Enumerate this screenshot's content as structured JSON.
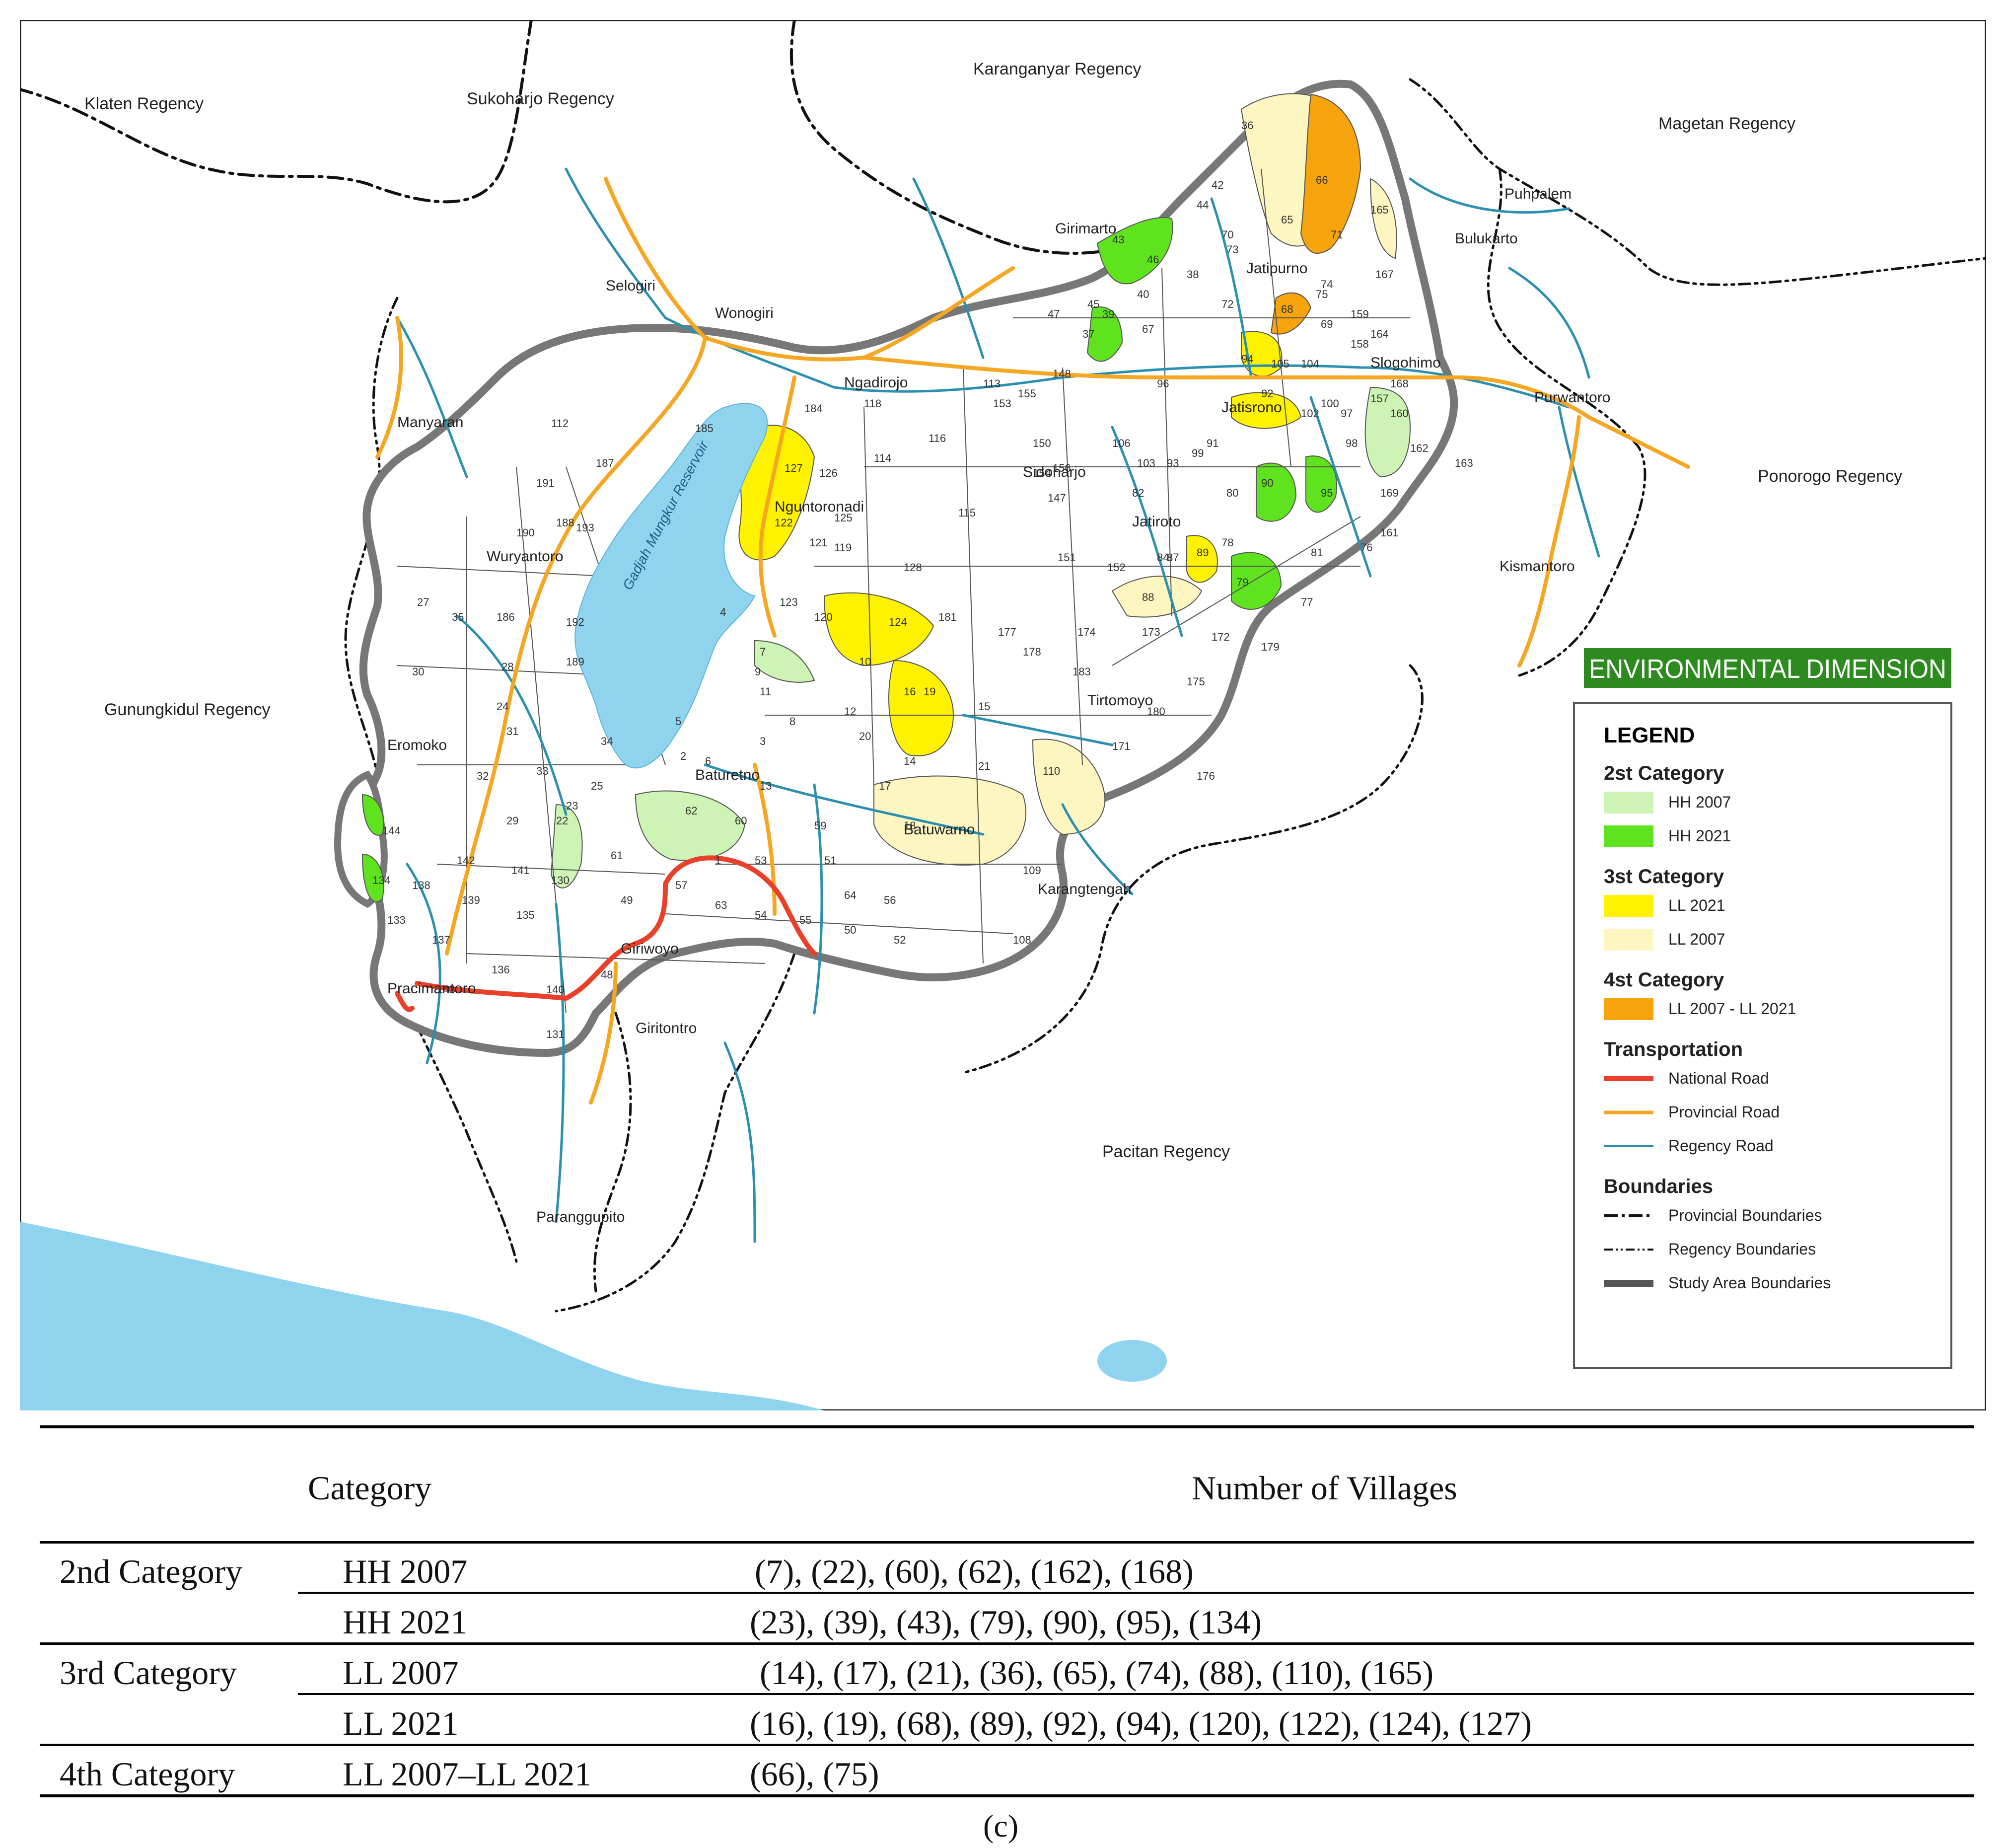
{
  "map": {
    "regions": [
      {
        "id": "klaten",
        "label": "Klaten Regency"
      },
      {
        "id": "sukoharjo",
        "label": "Sukoharjo Regency"
      },
      {
        "id": "karanganyar",
        "label": "Karanganyar Regency"
      },
      {
        "id": "magetan",
        "label": "Magetan Regency"
      },
      {
        "id": "ponorogo",
        "label": "Ponorogo Regency"
      },
      {
        "id": "gunungkidul",
        "label": "Gunungkidul Regency"
      },
      {
        "id": "pacitan",
        "label": "Pacitan Regency"
      }
    ],
    "reservoir_label": "Gadjah Mungkur Reservoir",
    "places": [
      "Selogiri",
      "Wonogiri",
      "Girimarto",
      "Jatipurno",
      "Puhpalem",
      "Bulukarto",
      "Slogohimo",
      "Purwantoro",
      "Manyaran",
      "Ngadirojo",
      "Nguntoronadi",
      "Jatisrono",
      "Sidoharjo",
      "Jatiroto",
      "Kismantoro",
      "Wuryantoro",
      "Tirtomoyo",
      "Eromoko",
      "Baturetno",
      "Batuwarno",
      "Karangtengah",
      "Giriwoyo",
      "Pracimantoro",
      "Giritontro",
      "Paranggupito"
    ],
    "village_numbers": [
      "36",
      "66",
      "42",
      "44",
      "165",
      "70",
      "65",
      "71",
      "73",
      "167",
      "43",
      "46",
      "38",
      "75",
      "74",
      "39",
      "47",
      "45",
      "37",
      "40",
      "67",
      "72",
      "68",
      "69",
      "159",
      "164",
      "158",
      "94",
      "105",
      "104",
      "168",
      "160",
      "184",
      "118",
      "148",
      "113",
      "153",
      "155",
      "96",
      "92",
      "100",
      "102",
      "97",
      "157",
      "112",
      "185",
      "187",
      "114",
      "116",
      "150",
      "154",
      "156",
      "106",
      "103",
      "93",
      "91",
      "98",
      "162",
      "163",
      "127",
      "126",
      "191",
      "188",
      "193",
      "190",
      "122",
      "125",
      "115",
      "147",
      "82",
      "99",
      "80",
      "90",
      "95",
      "169",
      "161",
      "121",
      "119",
      "128",
      "151",
      "152",
      "84",
      "87",
      "89",
      "78",
      "81",
      "76",
      "120",
      "124",
      "181",
      "177",
      "174",
      "173",
      "172",
      "179",
      "27",
      "35",
      "186",
      "192",
      "189",
      "4",
      "123",
      "88",
      "79",
      "77",
      "30",
      "28",
      "7",
      "10",
      "16",
      "19",
      "178",
      "183",
      "175",
      "180",
      "24",
      "31",
      "9",
      "11",
      "12",
      "8",
      "15",
      "176",
      "171",
      "32",
      "33",
      "34",
      "5",
      "6",
      "2",
      "3",
      "20",
      "14",
      "21",
      "110",
      "17",
      "13",
      "25",
      "62",
      "60",
      "59",
      "18",
      "29",
      "22",
      "23",
      "144",
      "142",
      "141",
      "130",
      "61",
      "49",
      "57",
      "63",
      "53",
      "51",
      "64",
      "56",
      "109",
      "134",
      "138",
      "139",
      "135",
      "54",
      "55",
      "50",
      "52",
      "108",
      "133",
      "137",
      "136",
      "48",
      "143",
      "140",
      "131",
      "1"
    ],
    "title_banner": "ENVIRONMENTAL DIMENSION",
    "legend": {
      "title": "LEGEND",
      "groups": [
        {
          "heading": "2st Category",
          "items": [
            {
              "label": "HH 2007",
              "color": "#cdf3b5",
              "kind": "fill"
            },
            {
              "label": "HH 2021",
              "color": "#5fe31f",
              "kind": "fill"
            }
          ]
        },
        {
          "heading": "3st Category",
          "items": [
            {
              "label": "LL 2021",
              "color": "#fff200",
              "kind": "fill"
            },
            {
              "label": "LL 2007",
              "color": "#fdf6c0",
              "kind": "fill"
            }
          ]
        },
        {
          "heading": "4st Category",
          "items": [
            {
              "label": "LL 2007 - LL 2021",
              "color": "#f7a30b",
              "kind": "fill"
            }
          ]
        },
        {
          "heading": "Transportation",
          "items": [
            {
              "label": "National Road",
              "color": "#e8402a",
              "kind": "road-national"
            },
            {
              "label": "Provincial Road",
              "color": "#f5a623",
              "kind": "road-provincial"
            },
            {
              "label": "Regency Road",
              "color": "#2b8fb0",
              "kind": "road-regency"
            }
          ]
        },
        {
          "heading": "Boundaries",
          "items": [
            {
              "label": "Provincial Boundaries",
              "color": "#111111",
              "kind": "boundary-provincial"
            },
            {
              "label": "Regency Boundaries",
              "color": "#111111",
              "kind": "boundary-regency"
            },
            {
              "label": "Study Area Boundaries",
              "color": "#555555",
              "kind": "boundary-study"
            }
          ]
        }
      ]
    },
    "colors": {
      "water": "#8fd3ee",
      "hh2007": "#cdf3b5",
      "hh2021": "#5fe31f",
      "ll2021": "#fff200",
      "ll2007": "#fdf6c0",
      "ll_both": "#f7a30b",
      "banner": "#2c8a1e"
    }
  },
  "table": {
    "headers": {
      "category": "Category",
      "villages": "Number of Villages"
    },
    "rows": [
      {
        "group": "2nd Category",
        "sub": "HH 2007",
        "villages": "(7), (22), (60), (62), (162), (168)"
      },
      {
        "group": "",
        "sub": "HH 2021",
        "villages": "(23), (39), (43), (79), (90), (95), (134)"
      },
      {
        "group": "3rd Category",
        "sub": "LL 2007",
        "villages": "(14), (17), (21), (36), (65), (74), (88), (110), (165)"
      },
      {
        "group": "",
        "sub": "LL 2021",
        "villages": "(16), (19), (68), (89), (92), (94), (120), (122), (124), (127)"
      },
      {
        "group": "4th Category",
        "sub": "LL 2007–LL 2021",
        "villages": "(66), (75)"
      }
    ],
    "caption": "(c)"
  }
}
